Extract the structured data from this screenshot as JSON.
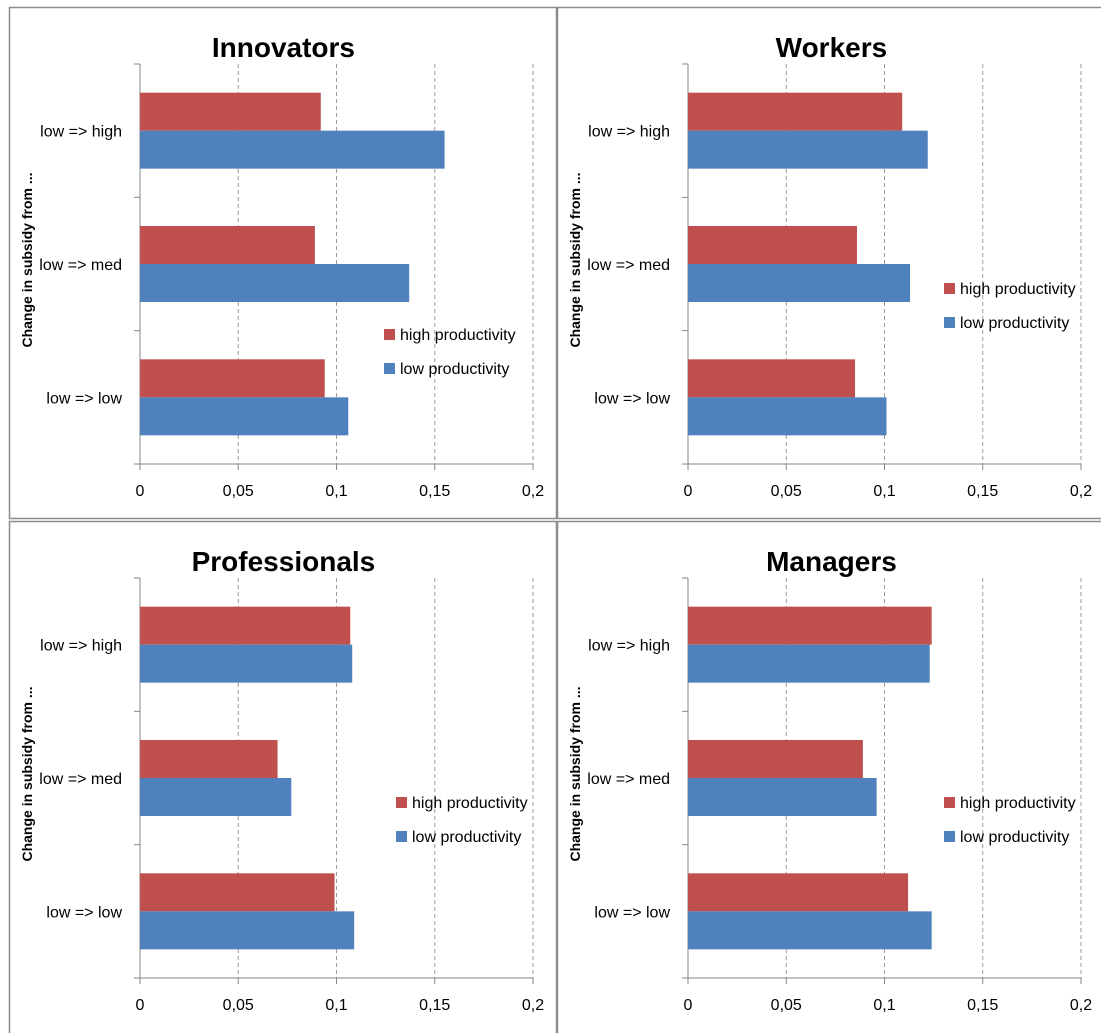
{
  "chart_data": [
    {
      "type": "bar",
      "orientation": "horizontal",
      "title": "Innovators",
      "ylabel": "Change in subsidy from ...",
      "categories": [
        "low => high",
        "low => med",
        "low => low"
      ],
      "series": [
        {
          "name": "high productivity",
          "values": [
            0.092,
            0.089,
            0.094
          ]
        },
        {
          "name": "low productivity",
          "values": [
            0.155,
            0.137,
            0.106
          ]
        }
      ],
      "xlim": [
        0,
        0.2
      ],
      "xticks": [
        "0",
        "0,05",
        "0,1",
        "0,15",
        "0,2"
      ],
      "grid": "vertical dashed",
      "legend": "right"
    },
    {
      "type": "bar",
      "orientation": "horizontal",
      "title": "Workers",
      "ylabel": "Change in subsidy from ...",
      "categories": [
        "low => high",
        "low => med",
        "low => low"
      ],
      "series": [
        {
          "name": "high productivity",
          "values": [
            0.109,
            0.086,
            0.085
          ]
        },
        {
          "name": "low productivity",
          "values": [
            0.122,
            0.113,
            0.101
          ]
        }
      ],
      "xlim": [
        0,
        0.2
      ],
      "xticks": [
        "0",
        "0,05",
        "0,1",
        "0,15",
        "0,2"
      ],
      "grid": "vertical dashed",
      "legend": "right"
    },
    {
      "type": "bar",
      "orientation": "horizontal",
      "title": "Professionals",
      "ylabel": "Change in subsidy from ...",
      "categories": [
        "low => high",
        "low => med",
        "low => low"
      ],
      "series": [
        {
          "name": "high productivity",
          "values": [
            0.107,
            0.07,
            0.099
          ]
        },
        {
          "name": "low productivity",
          "values": [
            0.108,
            0.077,
            0.109
          ]
        }
      ],
      "xlim": [
        0,
        0.2
      ],
      "xticks": [
        "0",
        "0,05",
        "0,1",
        "0,15",
        "0,2"
      ],
      "grid": "vertical dashed",
      "legend": "right"
    },
    {
      "type": "bar",
      "orientation": "horizontal",
      "title": "Managers",
      "ylabel": "Change in subsidy from ...",
      "categories": [
        "low => high",
        "low => med",
        "low => low"
      ],
      "series": [
        {
          "name": "high productivity",
          "values": [
            0.124,
            0.089,
            0.112
          ]
        },
        {
          "name": "low productivity",
          "values": [
            0.123,
            0.096,
            0.124
          ]
        }
      ],
      "xlim": [
        0,
        0.2
      ],
      "xticks": [
        "0",
        "0,05",
        "0,1",
        "0,15",
        "0,2"
      ],
      "grid": "vertical dashed",
      "legend": "right"
    }
  ],
  "colors": {
    "high_productivity": "#c0504d",
    "low_productivity": "#4f81bd",
    "panel_border": "#8c8c8c",
    "axis": "#868686",
    "grid": "#9a9a9a",
    "text": "#000000"
  }
}
